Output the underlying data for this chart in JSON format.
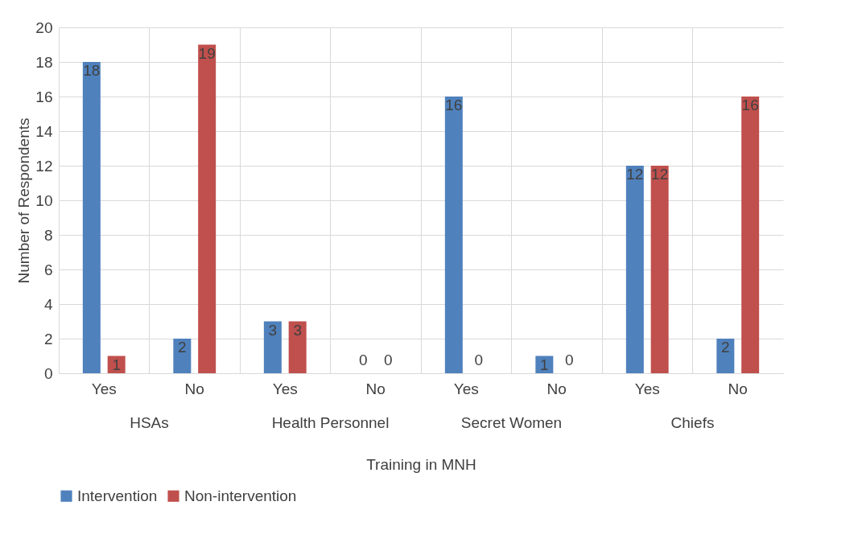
{
  "chart_data": {
    "type": "bar",
    "xlabel": "Training in MNH",
    "ylabel": "Number of Respondents",
    "categories": [
      "Yes",
      "No",
      "Yes",
      "No",
      "Yes",
      "No",
      "Yes",
      "No"
    ],
    "annotations": [
      "HSAs",
      "Health Personnel",
      "Secret Women",
      "Chiefs"
    ],
    "series": [
      {
        "name": "Intervention",
        "color": "#4f81bd",
        "values": [
          18,
          2,
          3,
          0,
          16,
          1,
          12,
          2
        ]
      },
      {
        "name": "Non-intervention",
        "color": "#c0504d",
        "values": [
          1,
          19,
          3,
          0,
          0,
          0,
          12,
          16
        ]
      }
    ],
    "ylim": [
      0,
      20
    ],
    "yticks": [
      0,
      2,
      4,
      6,
      8,
      10,
      12,
      14,
      16,
      18,
      20
    ],
    "grid": true,
    "legend": "bottom",
    "data_labels": true
  }
}
